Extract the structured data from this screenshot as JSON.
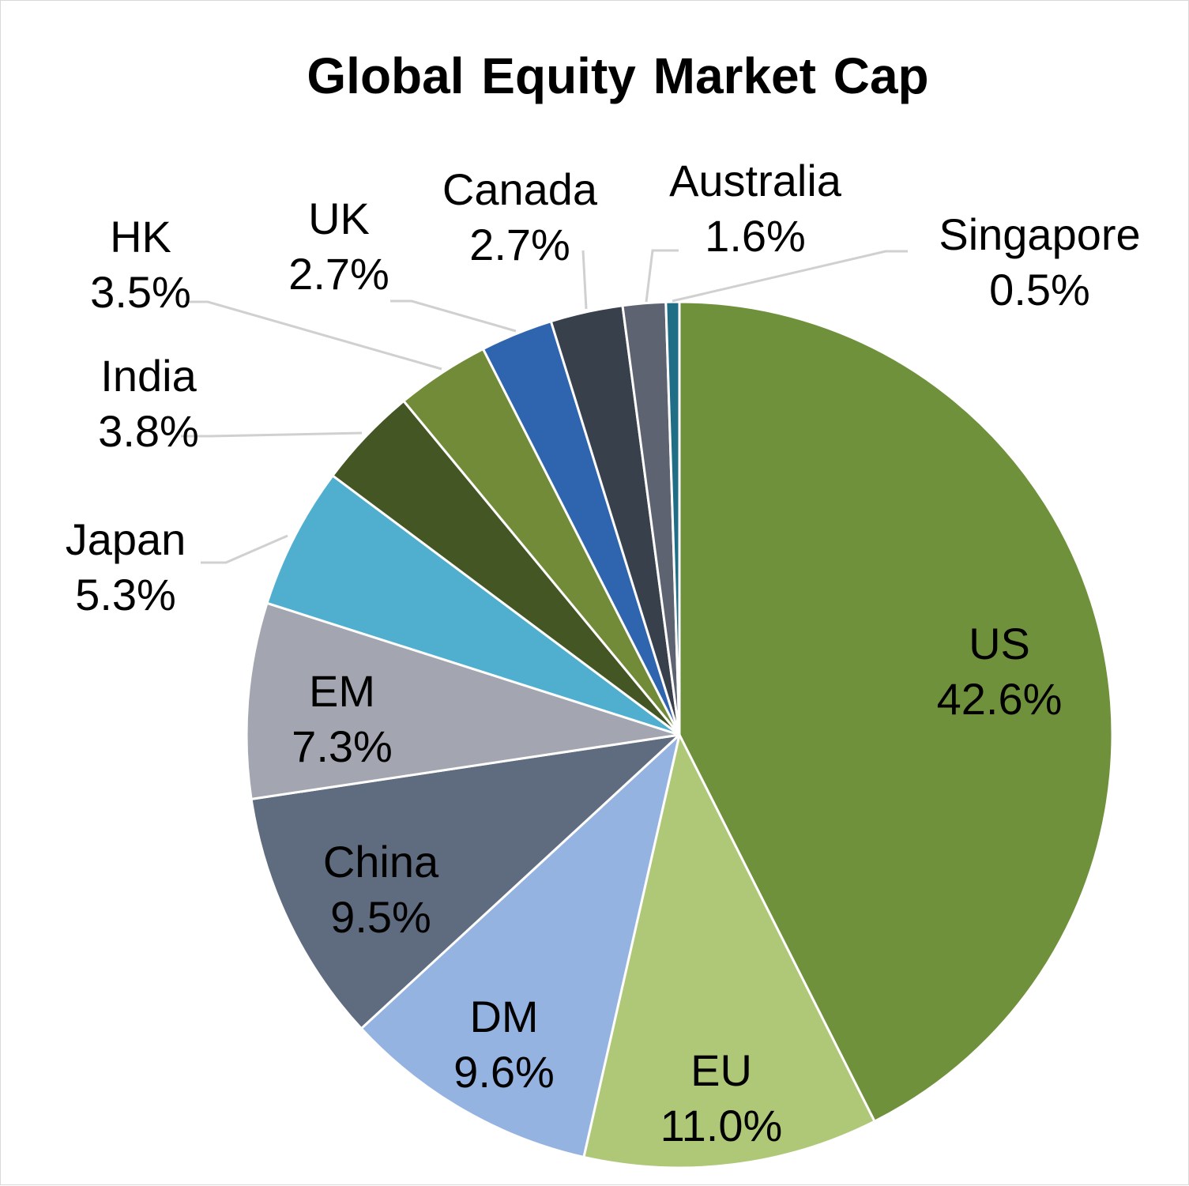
{
  "chart_data": {
    "type": "pie",
    "title": "Global Equity Market Cap",
    "slices": [
      {
        "name": "US",
        "label": "42.6%",
        "value": 42.6,
        "color": "#70913c"
      },
      {
        "name": "EU",
        "label": "11.0%",
        "value": 11.0,
        "color": "#afc878"
      },
      {
        "name": "DM",
        "label": "9.6%",
        "value": 9.6,
        "color": "#95b3e0"
      },
      {
        "name": "China",
        "label": "9.5%",
        "value": 9.5,
        "color": "#5f6b7e"
      },
      {
        "name": "EM",
        "label": "7.3%",
        "value": 7.3,
        "color": "#a3a6b1"
      },
      {
        "name": "Japan",
        "label": "5.3%",
        "value": 5.3,
        "color": "#50afcf"
      },
      {
        "name": "India",
        "label": "3.8%",
        "value": 3.8,
        "color": "#445624"
      },
      {
        "name": "HK",
        "label": "3.5%",
        "value": 3.5,
        "color": "#718b38"
      },
      {
        "name": "UK",
        "label": "2.7%",
        "value": 2.7,
        "color": "#2f64ae"
      },
      {
        "name": "Canada",
        "label": "2.7%",
        "value": 2.7,
        "color": "#38404b"
      },
      {
        "name": "Australia",
        "label": "1.6%",
        "value": 1.6,
        "color": "#5e6372"
      },
      {
        "name": "Singapore",
        "label": "0.5%",
        "value": 0.5,
        "color": "#1f6e86"
      }
    ]
  }
}
